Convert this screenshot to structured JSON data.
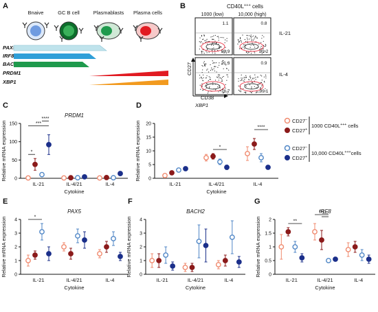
{
  "panelA": {
    "letter": "A",
    "cell_types": [
      "Bnaive",
      "GC B cell",
      "Plasmablasts",
      "Plasma cells"
    ],
    "genes": [
      "PAX5",
      "IRF8",
      "BACH2",
      "PRDM1",
      "XBP1"
    ],
    "colors": {
      "PAX5": "#bfe3ec",
      "IRF8": "#2f9fd8",
      "BACH2": "#1f9a4d",
      "PRDM1": "#e11b22",
      "XBP1": "#f29a1f"
    }
  },
  "panelB": {
    "letter": "B",
    "title": "CD40L",
    "title_sup": "+++",
    "title_suffix": " cells",
    "col_headers": [
      "1000 (low)",
      "10,000 (high)"
    ],
    "row_labels": [
      "IL-21",
      "IL-4"
    ],
    "ylabel": "CD27",
    "xlabel": "CD38",
    "xlabel2": "XBP1",
    "quadrants": [
      [
        "1.1",
        "98.9"
      ],
      [
        "0.8",
        "99.2"
      ],
      [
        "21.3",
        "78.7"
      ],
      [
        "0.9",
        "99.1"
      ]
    ]
  },
  "legend": {
    "neg": "CD27",
    "neg_sup": "–",
    "pos": "CD27",
    "pos_sup": "+",
    "group1": "1000 CD40L",
    "group1_sup": "+++",
    "group1_suffix": " cells",
    "group2": "10,000 CD40L",
    "group2_sup": "+++",
    "group2_suffix": "cells"
  },
  "colors": {
    "c1": "#f08a6e",
    "c2": "#8b1a1a",
    "c3": "#4f86c6",
    "c4": "#1b2f8a"
  },
  "chart_data": [
    {
      "panel": "C",
      "type": "scatter",
      "title": "PRDM1",
      "ylabel": "Relative mRNA expression",
      "xlabel": "Cytokine",
      "categories": [
        "IL-21",
        "IL-4/21",
        "IL-4"
      ],
      "series": [
        {
          "values": [
            1,
            1,
            1
          ],
          "err": [
            0.3,
            0.3,
            0.3
          ]
        },
        {
          "values": [
            38,
            1.5,
            2
          ],
          "err": [
            16,
            0.5,
            0.8
          ]
        },
        {
          "values": [
            10,
            1.5,
            1.5
          ],
          "err": [
            2,
            0.5,
            0.5
          ]
        },
        {
          "values": [
            92,
            4,
            13
          ],
          "err": [
            27,
            1,
            4
          ]
        }
      ],
      "sig": [
        {
          "a": 0,
          "b": 1,
          "text": "*"
        },
        {
          "a": 0,
          "b": 3,
          "text": "***"
        },
        {
          "a": 2,
          "b": 3,
          "text": "****"
        }
      ]
    },
    {
      "panel": "D",
      "type": "scatter",
      "title": "",
      "ylabel": "Relative mRNA expression",
      "xlabel": "Cytokine",
      "categories": [
        "IL-21",
        "IL-4/21",
        "IL-4"
      ],
      "series": [
        {
          "values": [
            1,
            7.5,
            9
          ],
          "err": [
            0.2,
            1.2,
            2.5
          ]
        },
        {
          "values": [
            2,
            8,
            12.5
          ],
          "err": [
            0.3,
            1,
            2
          ]
        },
        {
          "values": [
            3,
            6,
            7.5
          ],
          "err": [
            0.4,
            1,
            1.5
          ]
        },
        {
          "values": [
            3.5,
            4,
            4
          ],
          "err": [
            0.4,
            0.8,
            0.5
          ]
        }
      ],
      "sig": [
        {
          "cat": 1,
          "a": 1,
          "b": 3,
          "text": "*"
        },
        {
          "cat": 2,
          "a": 1,
          "b": 3,
          "text": "****"
        }
      ]
    },
    {
      "panel": "E",
      "type": "scatter",
      "title": "PAX5",
      "ylabel": "Relative mRNA expression",
      "xlabel": "Cytokine",
      "categories": [
        "IL-21",
        "IL-4/21",
        "IL-4"
      ],
      "series": [
        {
          "values": [
            1,
            2,
            1.5
          ],
          "err": [
            0.4,
            0.3,
            0.3
          ]
        },
        {
          "values": [
            1.4,
            1.5,
            2
          ],
          "err": [
            0.3,
            0.4,
            0.4
          ]
        },
        {
          "values": [
            3.1,
            2.8,
            2.6
          ],
          "err": [
            0.6,
            0.5,
            0.5
          ]
        },
        {
          "values": [
            1.5,
            2.5,
            1.3
          ],
          "err": [
            0.5,
            0.6,
            0.3
          ]
        }
      ],
      "sig": [
        {
          "cat": 0,
          "a": 0,
          "b": 2,
          "text": "*"
        }
      ]
    },
    {
      "panel": "F",
      "type": "scatter",
      "title": "BACH2",
      "ylabel": "Relative mRNA expression",
      "xlabel": "Cytokine",
      "categories": [
        "IL-21",
        "IL-4/21",
        "IL-4"
      ],
      "series": [
        {
          "values": [
            1,
            0.5,
            0.7
          ],
          "err": [
            0.5,
            0.3,
            0.3
          ]
        },
        {
          "values": [
            1,
            0.5,
            1
          ],
          "err": [
            0.5,
            0.3,
            0.4
          ]
        },
        {
          "values": [
            1.4,
            2.4,
            2.7
          ],
          "err": [
            0.6,
            1.2,
            1.2
          ]
        },
        {
          "values": [
            0.6,
            2.1,
            0.9
          ],
          "err": [
            0.3,
            1.2,
            0.4
          ]
        }
      ],
      "sig": []
    },
    {
      "panel": "G",
      "type": "scatter",
      "title": "IRF8",
      "ylabel": "Relative mRNA expression",
      "xlabel": "Cytokine",
      "categories": [
        "IL-21",
        "IL-4/21",
        "IL-4"
      ],
      "series": [
        {
          "values": [
            1,
            1.55,
            0.9
          ],
          "err": [
            0.45,
            0.3,
            0.25
          ]
        },
        {
          "values": [
            1.55,
            1.25,
            1
          ],
          "err": [
            0.15,
            0.35,
            0.2
          ]
        },
        {
          "values": [
            1,
            0.5,
            0.7
          ],
          "err": [
            0.2,
            0.05,
            0.2
          ]
        },
        {
          "values": [
            0.6,
            0.55,
            0.55
          ],
          "err": [
            0.15,
            0.05,
            0.15
          ]
        }
      ],
      "sig": [
        {
          "cat": 0,
          "a": 1,
          "b": 3,
          "text": "**"
        },
        {
          "cat": 1,
          "a": 0,
          "b": 2,
          "text": "***"
        },
        {
          "cat": 1,
          "a": 1,
          "b": 2,
          "text": "***"
        }
      ]
    }
  ]
}
